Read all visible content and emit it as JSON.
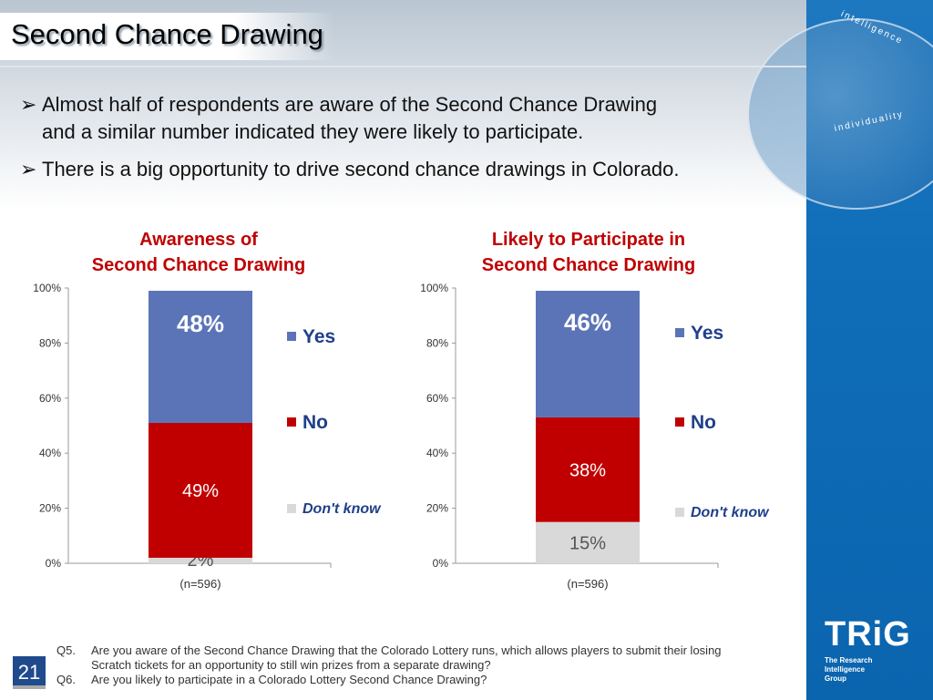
{
  "title": "Second Chance Drawing",
  "bullets": [
    "Almost half of respondents are aware of the Second Chance Drawing",
    "and a similar number indicated they were likely to participate.",
    "There is a big opportunity to drive second chance drawings in Colorado."
  ],
  "bullet_icon": "arrow-right-icon",
  "globe_words": [
    "intelligence",
    "individuality"
  ],
  "chart_data": [
    {
      "type": "bar",
      "stacked": true,
      "title_lines": [
        "Awareness of",
        "Second Chance Drawing"
      ],
      "categories": [
        "(n=596)"
      ],
      "ylim": [
        0,
        100
      ],
      "yticks": [
        "0%",
        "20%",
        "40%",
        "60%",
        "80%",
        "100%"
      ],
      "series": [
        {
          "name": "Don't know",
          "values": [
            2
          ],
          "label": "2%",
          "color": "#d9d9d9"
        },
        {
          "name": "No",
          "values": [
            49
          ],
          "label": "49%",
          "color": "#c00000"
        },
        {
          "name": "Yes",
          "values": [
            48
          ],
          "label": "48%",
          "color": "#5b74b8"
        }
      ],
      "legend": "right"
    },
    {
      "type": "bar",
      "stacked": true,
      "title_lines": [
        "Likely to Participate in",
        "Second Chance Drawing"
      ],
      "categories": [
        "(n=596)"
      ],
      "ylim": [
        0,
        100
      ],
      "yticks": [
        "0%",
        "20%",
        "40%",
        "60%",
        "80%",
        "100%"
      ],
      "series": [
        {
          "name": "Don't know",
          "values": [
            15
          ],
          "label": "15%",
          "color": "#d9d9d9"
        },
        {
          "name": "No",
          "values": [
            38
          ],
          "label": "38%",
          "color": "#c00000"
        },
        {
          "name": "Yes",
          "values": [
            46
          ],
          "label": "46%",
          "color": "#5b74b8"
        }
      ],
      "legend": "right"
    }
  ],
  "footnotes": [
    {
      "q": "Q5.",
      "lines": [
        "Are you aware of the Second Chance Drawing that the Colorado Lottery runs, which allows players to submit their losing",
        "Scratch tickets for an opportunity to still win prizes from a separate drawing?"
      ]
    },
    {
      "q": "Q6.",
      "lines": [
        "Are you likely to participate in a Colorado Lottery Second Chance Drawing?"
      ]
    }
  ],
  "page_number": "21",
  "logo": {
    "name": "TRiG",
    "lines": [
      "The Research",
      "Intelligence",
      "Group"
    ]
  }
}
